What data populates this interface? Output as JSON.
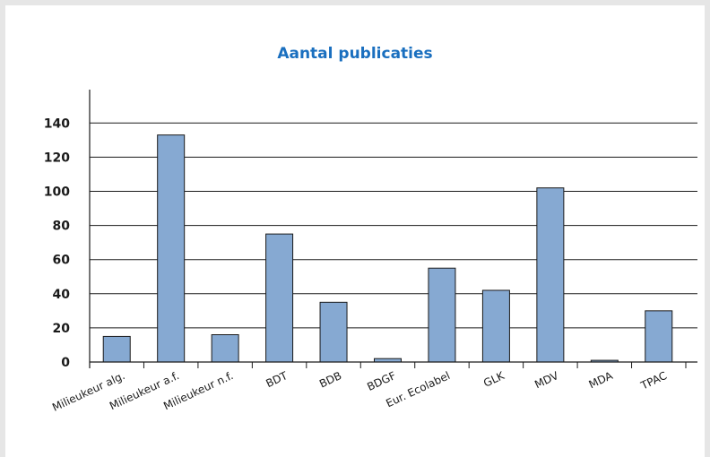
{
  "chart_data": {
    "type": "bar",
    "title": "Aantal publicaties",
    "categories": [
      "Milieukeur alg.",
      "Milieukeur a.f.",
      "Milieukeur n.f.",
      "BDT",
      "BDB",
      "BDGF",
      "Eur. Ecolabel",
      "GLK",
      "MDV",
      "MDA",
      "TPAC"
    ],
    "values": [
      15,
      133,
      16,
      75,
      35,
      2,
      55,
      42,
      102,
      1,
      30
    ],
    "ylim": [
      0,
      150
    ],
    "yticks": [
      "0",
      "20",
      "40",
      "60",
      "80",
      "100",
      "120",
      "140"
    ],
    "xlabel": "",
    "ylabel": "",
    "grid": true,
    "legend": "none",
    "bar_color": "#86a9d2",
    "title_color": "#1a6fbf"
  }
}
